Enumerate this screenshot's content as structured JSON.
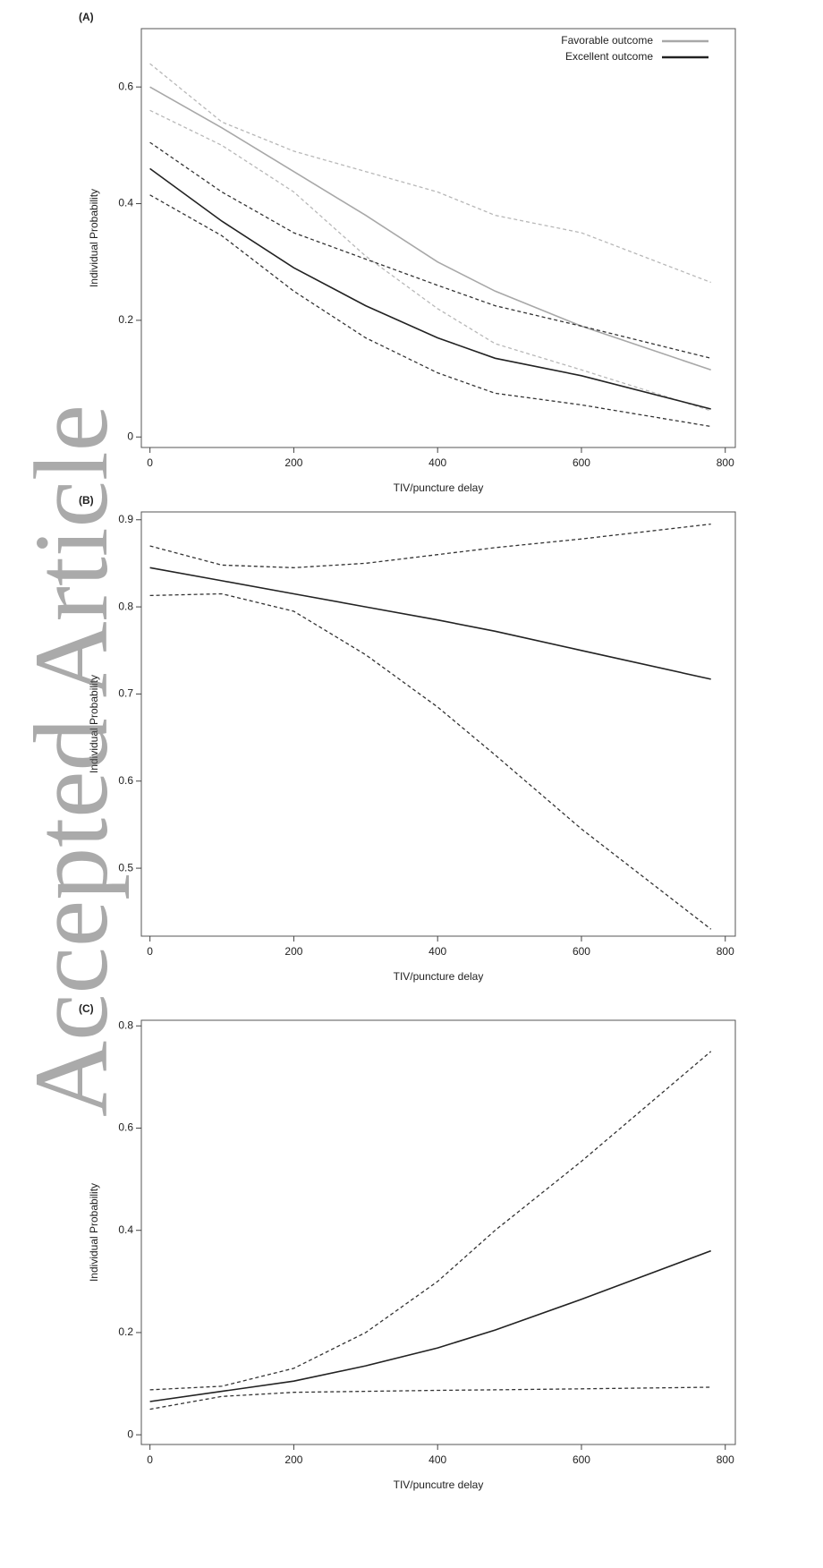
{
  "watermark": "Accepted Article",
  "chart_data": [
    {
      "type": "line",
      "title": "(A)",
      "xlabel": "TIV/puncture delay",
      "ylabel": "Individual Probability",
      "x": [
        0,
        100,
        200,
        300,
        400,
        480,
        600,
        780
      ],
      "xlim": [
        -12,
        814
      ],
      "xticks": [
        0,
        200,
        400,
        600,
        800
      ],
      "ylim": [
        -0.018,
        0.7
      ],
      "yticks": [
        0,
        0.2,
        0.4,
        0.6
      ],
      "legend": "top-right",
      "series": [
        {
          "name": "Favorable outcome",
          "color": "#a8a8a8",
          "values": [
            0.6,
            0.53,
            0.455,
            0.38,
            0.3,
            0.25,
            0.19,
            0.115
          ]
        },
        {
          "color": "#b8b8b8",
          "dashed": true,
          "values": [
            0.64,
            0.54,
            0.49,
            0.455,
            0.42,
            0.38,
            0.35,
            0.265
          ]
        },
        {
          "color": "#b8b8b8",
          "dashed": true,
          "values": [
            0.56,
            0.5,
            0.42,
            0.31,
            0.22,
            0.16,
            0.115,
            0.045
          ]
        },
        {
          "name": "Excellent outcome",
          "color": "#222222",
          "values": [
            0.46,
            0.37,
            0.29,
            0.225,
            0.17,
            0.135,
            0.105,
            0.048
          ]
        },
        {
          "color": "#333333",
          "dashed": true,
          "values": [
            0.505,
            0.42,
            0.35,
            0.305,
            0.26,
            0.225,
            0.19,
            0.135
          ]
        },
        {
          "color": "#333333",
          "dashed": true,
          "values": [
            0.415,
            0.345,
            0.25,
            0.17,
            0.11,
            0.075,
            0.055,
            0.018
          ]
        }
      ]
    },
    {
      "type": "line",
      "title": "(B)",
      "xlabel": "TIV/puncture delay",
      "ylabel": "Individual Probability",
      "x": [
        0,
        100,
        200,
        300,
        400,
        480,
        600,
        780
      ],
      "xlim": [
        -12,
        814
      ],
      "xticks": [
        0,
        200,
        400,
        600,
        800
      ],
      "ylim": [
        0.422,
        0.909
      ],
      "yticks": [
        0.5,
        0.6,
        0.7,
        0.8,
        0.9
      ],
      "series": [
        {
          "color": "#222222",
          "values": [
            0.845,
            0.83,
            0.815,
            0.8,
            0.785,
            0.772,
            0.75,
            0.717
          ]
        },
        {
          "color": "#333333",
          "dashed": true,
          "values": [
            0.87,
            0.848,
            0.845,
            0.85,
            0.86,
            0.868,
            0.878,
            0.895
          ]
        },
        {
          "color": "#333333",
          "dashed": true,
          "values": [
            0.813,
            0.815,
            0.795,
            0.745,
            0.685,
            0.63,
            0.545,
            0.43
          ]
        }
      ]
    },
    {
      "type": "line",
      "title": "(C)",
      "xlabel": "TIV/puncutre delay",
      "ylabel": "Individual Probability",
      "x": [
        0,
        100,
        200,
        300,
        400,
        480,
        600,
        780
      ],
      "xlim": [
        -12,
        814
      ],
      "xticks": [
        0,
        200,
        400,
        600,
        800
      ],
      "ylim": [
        -0.019,
        0.811
      ],
      "yticks": [
        0,
        0.2,
        0.4,
        0.6,
        0.8
      ],
      "series": [
        {
          "color": "#222222",
          "values": [
            0.065,
            0.085,
            0.105,
            0.135,
            0.17,
            0.205,
            0.265,
            0.36
          ]
        },
        {
          "color": "#333333",
          "dashed": true,
          "values": [
            0.088,
            0.095,
            0.13,
            0.2,
            0.3,
            0.4,
            0.535,
            0.75
          ]
        },
        {
          "color": "#333333",
          "dashed": true,
          "values": [
            0.05,
            0.075,
            0.083,
            0.085,
            0.087,
            0.088,
            0.09,
            0.093
          ]
        }
      ]
    }
  ]
}
